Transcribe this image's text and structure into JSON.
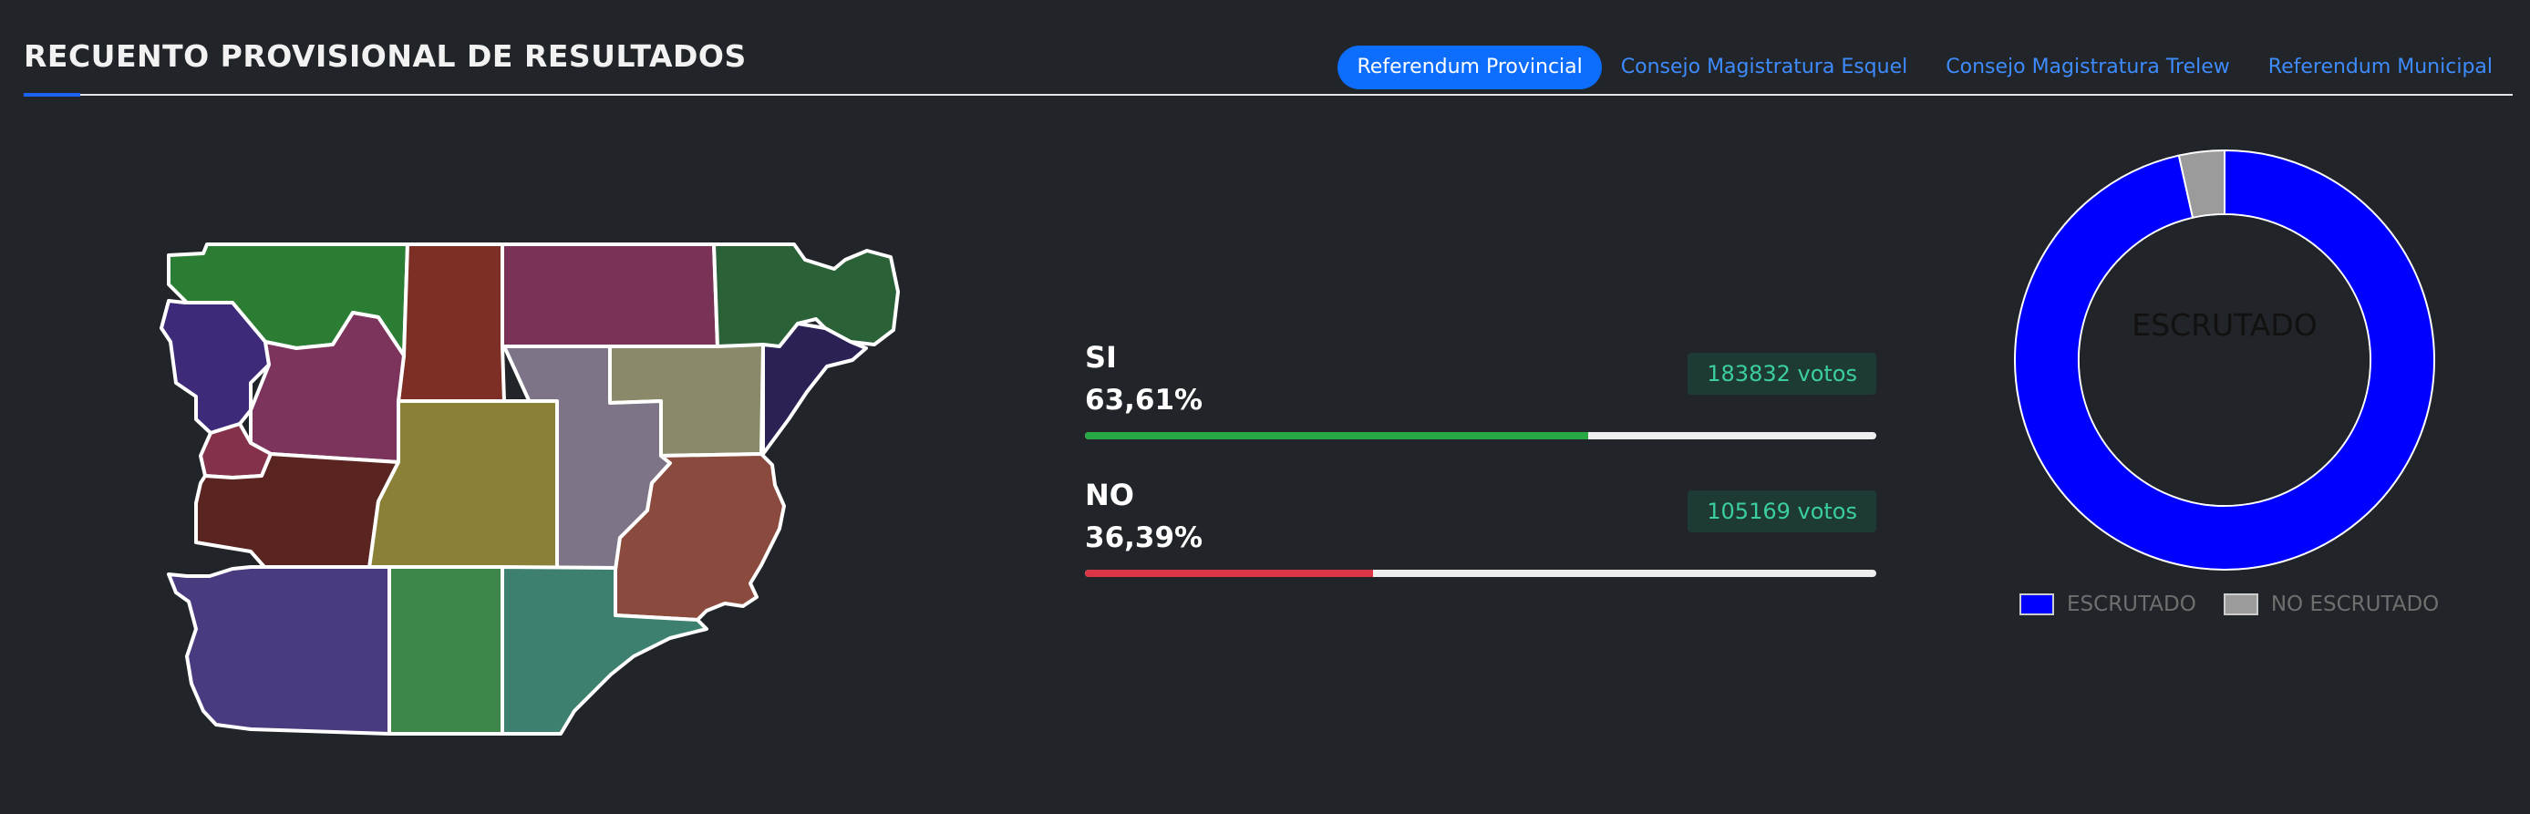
{
  "header": {
    "title": "RECUENTO PROVISIONAL DE RESULTADOS"
  },
  "tabs": [
    {
      "label": "Referendum Provincial",
      "active": true
    },
    {
      "label": "Consejo Magistratura Esquel",
      "active": false
    },
    {
      "label": "Consejo Magistratura Trelew",
      "active": false
    },
    {
      "label": "Referendum Municipal",
      "active": false
    }
  ],
  "results": [
    {
      "label": "SI",
      "percent": "63,61%",
      "percent_value": 63.61,
      "votes": "183832 votos",
      "color": "#28a745"
    },
    {
      "label": "NO",
      "percent": "36,39%",
      "percent_value": 36.39,
      "votes": "105169 votos",
      "color": "#dc3545"
    }
  ],
  "donut": {
    "center_label": "ESCRUTADO",
    "segments": [
      {
        "label": "ESCRUTADO",
        "value": 96.5,
        "color": "#0000ff"
      },
      {
        "label": "NO ESCRUTADO",
        "value": 3.5,
        "color": "#9b9b9b"
      }
    ]
  },
  "map": {
    "region_colors": [
      "#2a7d33",
      "#7d2e25",
      "#7a3357",
      "#2a6136",
      "#3d2b7a",
      "#7d345c",
      "#83324a",
      "#8a8a6a",
      "#2b2155",
      "#7d7587",
      "#5a2520",
      "#8a8038",
      "#8a4a3e",
      "#4a3a80",
      "#3d8548",
      "#3e8070"
    ]
  }
}
